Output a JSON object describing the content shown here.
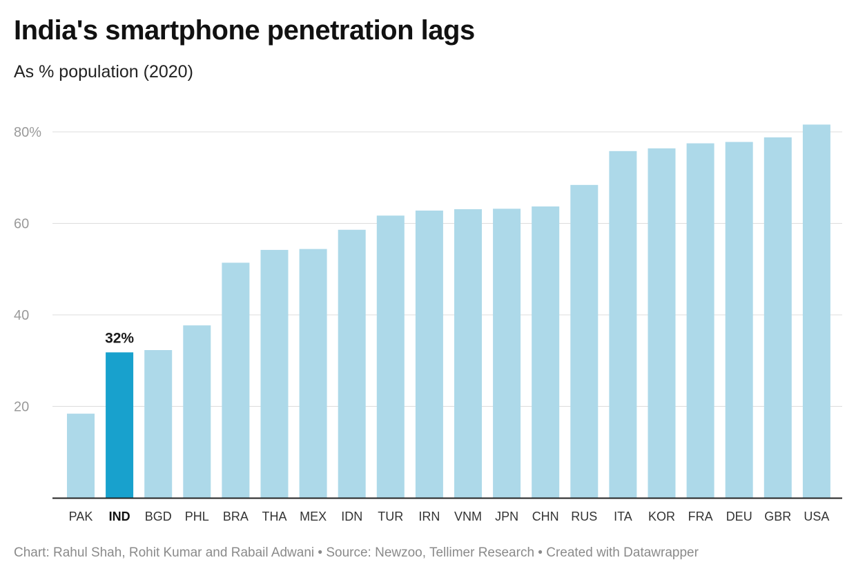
{
  "header": {
    "title": "India's smartphone penetration lags",
    "subtitle": "As % population (2020)"
  },
  "footer": {
    "credit": "Chart: Rahul Shah, Rohit Kumar and Rabail Adwani • Source: Newzoo, Tellimer Research • Created with Datawrapper"
  },
  "chart_data": {
    "type": "bar",
    "title": "India's smartphone penetration lags",
    "subtitle": "As % population (2020)",
    "xlabel": "",
    "ylabel": "",
    "categories": [
      "PAK",
      "IND",
      "BGD",
      "PHL",
      "BRA",
      "THA",
      "MEX",
      "IDN",
      "TUR",
      "IRN",
      "VNM",
      "JPN",
      "CHN",
      "RUS",
      "ITA",
      "KOR",
      "FRA",
      "DEU",
      "GBR",
      "USA"
    ],
    "values": [
      18.4,
      31.8,
      32.3,
      37.7,
      51.4,
      54.2,
      54.4,
      58.6,
      61.7,
      62.8,
      63.1,
      63.2,
      63.7,
      68.4,
      75.8,
      76.4,
      77.5,
      77.8,
      78.8,
      81.6
    ],
    "ylim": [
      0,
      80
    ],
    "yticks": [
      20,
      40,
      60,
      80
    ],
    "ytick_labels": [
      "20",
      "40",
      "60",
      "80%"
    ],
    "grid": true,
    "highlight": {
      "category": "IND",
      "label": "32%"
    },
    "colors": {
      "bar": "#add9e9",
      "highlight": "#18a1cd",
      "grid": "#dcdcdc",
      "axis": "#222222"
    }
  }
}
